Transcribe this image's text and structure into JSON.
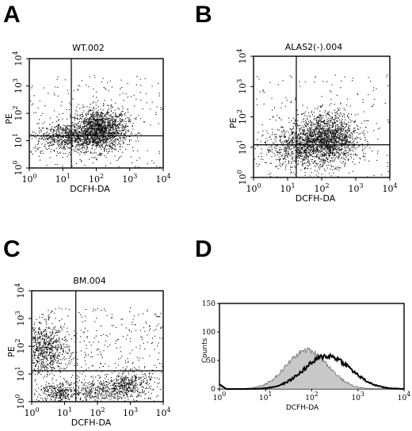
{
  "chart_data": [
    {
      "panel": "A",
      "type": "scatter",
      "title": "WT.002",
      "xlabel": "DCFH-DA",
      "ylabel": "PE",
      "xscale": "log",
      "yscale": "log",
      "xlim": [
        1,
        10000
      ],
      "ylim": [
        1,
        10000
      ],
      "x_ticks": [
        "10^0",
        "10^1",
        "10^2",
        "10^3",
        "10^4"
      ],
      "y_ticks": [
        "10^0",
        "10^1",
        "10^2",
        "10^3",
        "10^4"
      ],
      "quadrant_gate": {
        "x": 18,
        "y": 15
      },
      "clusters": [
        {
          "cx": 120,
          "cy": 25,
          "spread_x": 0.42,
          "spread_y": 0.38,
          "n": 1600
        },
        {
          "cx": 12,
          "cy": 14,
          "spread_x": 0.45,
          "spread_y": 0.25,
          "n": 600
        }
      ],
      "background_n": 220
    },
    {
      "panel": "B",
      "type": "scatter",
      "title": "ALAS2(-).004",
      "xlabel": "DCFH-DA",
      "ylabel": "PE",
      "xscale": "log",
      "yscale": "log",
      "xlim": [
        1,
        10000
      ],
      "ylim": [
        1,
        10000
      ],
      "x_ticks": [
        "10^0",
        "10^1",
        "10^2",
        "10^3",
        "10^4"
      ],
      "y_ticks": [
        "10^0",
        "10^1",
        "10^2",
        "10^3",
        "10^4"
      ],
      "quadrant_gate": {
        "x": 18,
        "y": 12
      },
      "clusters": [
        {
          "cx": 150,
          "cy": 20,
          "spread_x": 0.45,
          "spread_y": 0.42,
          "n": 1600
        },
        {
          "cx": 20,
          "cy": 10,
          "spread_x": 0.5,
          "spread_y": 0.35,
          "n": 700
        }
      ],
      "background_n": 180
    },
    {
      "panel": "C",
      "type": "scatter",
      "title": "BM.004",
      "xlabel": "DCFH-DA",
      "ylabel": "PE",
      "xscale": "log",
      "yscale": "log",
      "xlim": [
        1,
        10000
      ],
      "ylim": [
        1,
        10000
      ],
      "x_ticks": [
        "10^0",
        "10^1",
        "10^2",
        "10^3",
        "10^4"
      ],
      "y_ticks": [
        "10^0",
        "10^1",
        "10^2",
        "10^3",
        "10^4"
      ],
      "quadrant_gate": {
        "x": 22,
        "y": 13
      },
      "clusters": [
        {
          "cx": 2.5,
          "cy": 80,
          "spread_x": 0.35,
          "spread_y": 0.45,
          "n": 700
        },
        {
          "cx": 6,
          "cy": 2.2,
          "spread_x": 0.25,
          "spread_y": 0.2,
          "n": 250
        },
        {
          "cx": 800,
          "cy": 4,
          "spread_x": 0.35,
          "spread_y": 0.25,
          "n": 400
        },
        {
          "cx": 80,
          "cy": 2.5,
          "spread_x": 0.45,
          "spread_y": 0.2,
          "n": 300
        }
      ],
      "background_n": 450
    },
    {
      "panel": "D",
      "type": "line",
      "title": "",
      "xlabel": "DCFH-DA",
      "ylabel": "Counts",
      "xscale": "log",
      "xlim": [
        1,
        10000
      ],
      "ylim": [
        0,
        150
      ],
      "x_ticks": [
        "10^0",
        "10^1",
        "10^2",
        "10^3",
        "10^4"
      ],
      "y_ticks": [
        "0",
        "50",
        "100",
        "150"
      ],
      "series": [
        {
          "style": "filled-gray",
          "peak_x": 80,
          "peak_y": 68,
          "width": 0.45
        },
        {
          "style": "bold-black",
          "peak_x": 220,
          "peak_y": 58,
          "width": 0.5
        }
      ]
    }
  ],
  "panel_letters": {
    "a": "A",
    "b": "B",
    "c": "C",
    "d": "D"
  }
}
